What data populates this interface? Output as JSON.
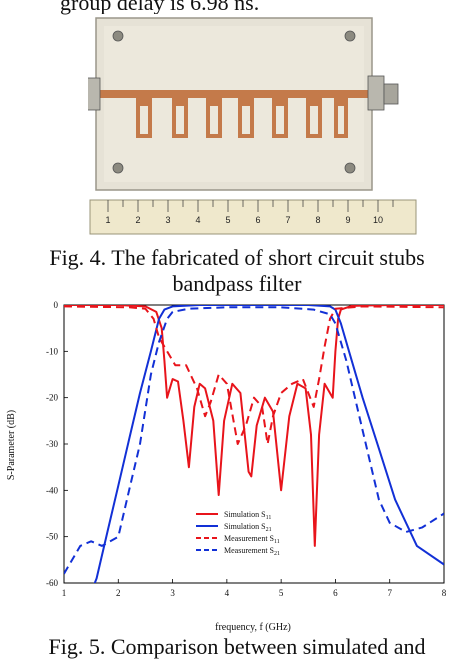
{
  "top_text": "group delay is 6.98 ns.",
  "fig4_caption_line1": "Fig. 4. The fabricated of short circuit stubs",
  "fig4_caption_line2": "bandpass filter",
  "fig5_caption": "Fig. 5. Comparison between simulated and",
  "ruler_numbers": [
    "1",
    "2",
    "3",
    "4",
    "5",
    "6",
    "7",
    "8",
    "9",
    "10"
  ],
  "chart_data": {
    "type": "line",
    "xlabel": "frequency, f (GHz)",
    "ylabel": "S-Parameter (dB)",
    "xlim": [
      1,
      8
    ],
    "ylim": [
      -60,
      0
    ],
    "xticks": [
      "1",
      "2",
      "3",
      "4",
      "5",
      "6",
      "7",
      "8"
    ],
    "yticks": [
      "0",
      "-10",
      "-20",
      "-30",
      "-40",
      "-50",
      "-60"
    ],
    "legend_position": "lower-center",
    "series": [
      {
        "name": "Simulation S11",
        "label_main": "Simulation S",
        "label_sub": "11",
        "color": "#e8141b",
        "dash": "solid",
        "points": [
          [
            1,
            0
          ],
          [
            2,
            0
          ],
          [
            2.5,
            -0.3
          ],
          [
            2.7,
            -1.5
          ],
          [
            2.8,
            -5
          ],
          [
            2.85,
            -12
          ],
          [
            2.9,
            -20
          ],
          [
            3.0,
            -16
          ],
          [
            3.1,
            -16.5
          ],
          [
            3.2,
            -25
          ],
          [
            3.3,
            -35
          ],
          [
            3.4,
            -22
          ],
          [
            3.5,
            -17
          ],
          [
            3.6,
            -18
          ],
          [
            3.75,
            -25
          ],
          [
            3.85,
            -41
          ],
          [
            3.95,
            -25
          ],
          [
            4.1,
            -17
          ],
          [
            4.25,
            -19
          ],
          [
            4.4,
            -36
          ],
          [
            4.45,
            -37
          ],
          [
            4.55,
            -26
          ],
          [
            4.7,
            -20
          ],
          [
            4.85,
            -23
          ],
          [
            5.0,
            -40
          ],
          [
            5.15,
            -24
          ],
          [
            5.3,
            -17
          ],
          [
            5.45,
            -18
          ],
          [
            5.55,
            -28
          ],
          [
            5.62,
            -52
          ],
          [
            5.7,
            -28
          ],
          [
            5.8,
            -17
          ],
          [
            5.95,
            -20
          ],
          [
            6.0,
            -10
          ],
          [
            6.05,
            -3
          ],
          [
            6.1,
            -1
          ],
          [
            6.3,
            -0.2
          ],
          [
            7,
            0
          ],
          [
            8,
            0
          ]
        ]
      },
      {
        "name": "Simulation S21",
        "label_main": "Simulation S",
        "label_sub": "21",
        "color": "#1230d6",
        "dash": "solid",
        "points": [
          [
            1.5,
            -62
          ],
          [
            1.6,
            -59
          ],
          [
            1.8,
            -49
          ],
          [
            2.0,
            -39
          ],
          [
            2.2,
            -29
          ],
          [
            2.4,
            -19
          ],
          [
            2.6,
            -10
          ],
          [
            2.75,
            -3
          ],
          [
            2.85,
            -1
          ],
          [
            3.0,
            -0.3
          ],
          [
            3.5,
            0
          ],
          [
            5.5,
            0
          ],
          [
            5.9,
            -0.3
          ],
          [
            6.0,
            -1
          ],
          [
            6.1,
            -4
          ],
          [
            6.25,
            -10
          ],
          [
            6.5,
            -20
          ],
          [
            6.8,
            -31
          ],
          [
            7.1,
            -42
          ],
          [
            7.5,
            -52
          ],
          [
            8.0,
            -56
          ]
        ]
      },
      {
        "name": "Measurement S11",
        "label_main": "Measurement S",
        "label_sub": "11",
        "color": "#e8141b",
        "dash": "8,5",
        "points": [
          [
            1,
            -0.3
          ],
          [
            2.2,
            -0.5
          ],
          [
            2.5,
            -0.8
          ],
          [
            2.65,
            -3
          ],
          [
            2.75,
            -7
          ],
          [
            2.8,
            -8
          ],
          [
            2.9,
            -10
          ],
          [
            3.05,
            -13
          ],
          [
            3.25,
            -13
          ],
          [
            3.45,
            -18
          ],
          [
            3.6,
            -24
          ],
          [
            3.7,
            -21
          ],
          [
            3.85,
            -15
          ],
          [
            4.0,
            -17
          ],
          [
            4.2,
            -30
          ],
          [
            4.35,
            -26
          ],
          [
            4.5,
            -20
          ],
          [
            4.65,
            -22
          ],
          [
            4.75,
            -30
          ],
          [
            4.85,
            -24
          ],
          [
            5.0,
            -19
          ],
          [
            5.2,
            -17
          ],
          [
            5.4,
            -16
          ],
          [
            5.6,
            -22
          ],
          [
            5.7,
            -16
          ],
          [
            5.8,
            -9
          ],
          [
            5.9,
            -3
          ],
          [
            6.0,
            -0.8
          ],
          [
            6.5,
            -0.3
          ],
          [
            8,
            -0.5
          ]
        ]
      },
      {
        "name": "Measurement S21",
        "label_main": "Measurement S",
        "label_sub": "21",
        "color": "#1230d6",
        "dash": "8,5",
        "points": [
          [
            1,
            -58
          ],
          [
            1.3,
            -52
          ],
          [
            1.5,
            -51
          ],
          [
            1.7,
            -52
          ],
          [
            2.0,
            -50
          ],
          [
            2.2,
            -40
          ],
          [
            2.4,
            -30
          ],
          [
            2.6,
            -15
          ],
          [
            2.75,
            -8
          ],
          [
            2.9,
            -3
          ],
          [
            3.0,
            -1.5
          ],
          [
            3.3,
            -0.8
          ],
          [
            4,
            -0.5
          ],
          [
            5,
            -0.5
          ],
          [
            5.6,
            -1
          ],
          [
            5.9,
            -2
          ],
          [
            6.0,
            -4
          ],
          [
            6.2,
            -12
          ],
          [
            6.4,
            -22
          ],
          [
            6.6,
            -32
          ],
          [
            6.8,
            -42
          ],
          [
            7.0,
            -47
          ],
          [
            7.3,
            -49
          ],
          [
            7.6,
            -48
          ],
          [
            8.0,
            -45
          ]
        ]
      }
    ]
  }
}
